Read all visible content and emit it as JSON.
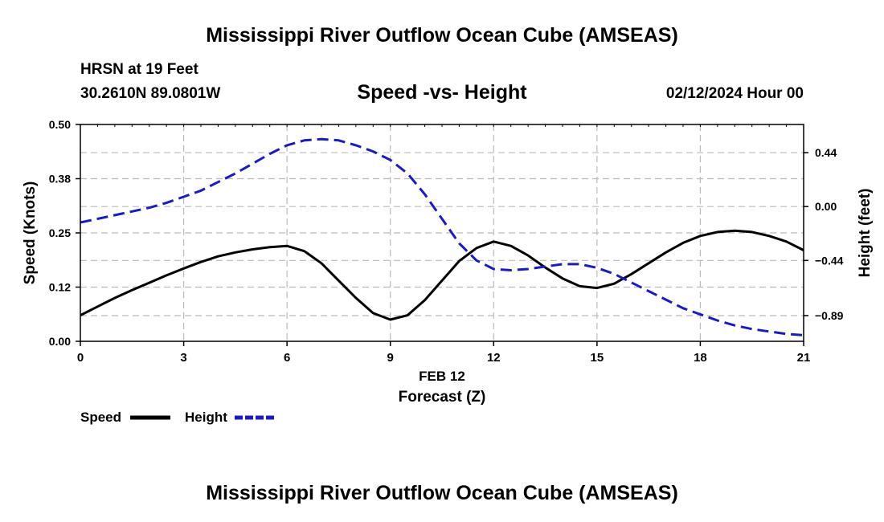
{
  "header": {
    "title": "Mississippi River Outflow Ocean Cube (AMSEAS)",
    "station": "HRSN at 19 Feet",
    "coords": "30.2610N  89.0801W",
    "datetime": "02/12/2024 Hour 00",
    "bottom_title": "Mississippi River Outflow Ocean Cube (AMSEAS)"
  },
  "chart_data": {
    "type": "line",
    "title": "Speed -vs- Height",
    "xlabel": "Forecast (Z)",
    "xsublabel": "FEB 12",
    "ylabel_left": "Speed (Knots)",
    "ylabel_right": "Height (feet)",
    "xlim": [
      0,
      21
    ],
    "ylim_left": [
      0,
      0.5
    ],
    "ylim_right": [
      -1.1,
      0.67
    ],
    "x_ticks": [
      0,
      3,
      6,
      9,
      12,
      15,
      18,
      21
    ],
    "x_tick_labels": [
      "0",
      "3",
      "6",
      "9",
      "12",
      "15",
      "18",
      "21"
    ],
    "y_left_ticks": [
      0.0,
      0.125,
      0.25,
      0.375,
      0.5
    ],
    "y_left_tick_labels": [
      "0.00",
      "0.12",
      "0.25",
      "0.38",
      "0.50"
    ],
    "y_right_ticks": [
      0.44,
      0.0,
      -0.44,
      -0.89
    ],
    "y_right_tick_labels": [
      "0.44",
      "0.00",
      "−0.44",
      "−0.89"
    ],
    "series": [
      {
        "name": "Speed",
        "axis": "left",
        "color": "#000000",
        "dash": "solid",
        "x": [
          0,
          0.5,
          1,
          1.5,
          2,
          2.5,
          3,
          3.5,
          4,
          4.5,
          5,
          5.5,
          6,
          6.5,
          7,
          7.5,
          8,
          8.5,
          9,
          9.5,
          10,
          10.5,
          11,
          11.5,
          12,
          12.5,
          13,
          13.5,
          14,
          14.5,
          15,
          15.5,
          16,
          16.5,
          17,
          17.5,
          18,
          18.5,
          19,
          19.5,
          20,
          20.5,
          21
        ],
        "values": [
          0.06,
          0.08,
          0.1,
          0.118,
          0.135,
          0.152,
          0.168,
          0.183,
          0.196,
          0.205,
          0.212,
          0.217,
          0.22,
          0.208,
          0.18,
          0.14,
          0.1,
          0.065,
          0.05,
          0.06,
          0.095,
          0.14,
          0.185,
          0.215,
          0.23,
          0.22,
          0.198,
          0.17,
          0.145,
          0.127,
          0.123,
          0.133,
          0.155,
          0.18,
          0.205,
          0.227,
          0.243,
          0.252,
          0.255,
          0.252,
          0.243,
          0.23,
          0.21
        ]
      },
      {
        "name": "Height",
        "axis": "right",
        "color": "#1a1acc",
        "dash": "dashed",
        "x": [
          0,
          0.5,
          1,
          1.5,
          2,
          2.5,
          3,
          3.5,
          4,
          4.5,
          5,
          5.5,
          6,
          6.5,
          7,
          7.5,
          8,
          8.5,
          9,
          9.5,
          10,
          10.5,
          11,
          11.5,
          12,
          12.5,
          13,
          13.5,
          14,
          14.5,
          15,
          15.5,
          16,
          16.5,
          17,
          17.5,
          18,
          18.5,
          19,
          19.5,
          20,
          20.5,
          21
        ],
        "values": [
          -0.13,
          -0.1,
          -0.07,
          -0.04,
          -0.01,
          0.03,
          0.08,
          0.13,
          0.2,
          0.27,
          0.35,
          0.43,
          0.5,
          0.54,
          0.55,
          0.54,
          0.5,
          0.45,
          0.38,
          0.27,
          0.1,
          -0.1,
          -0.3,
          -0.44,
          -0.51,
          -0.52,
          -0.51,
          -0.49,
          -0.47,
          -0.47,
          -0.5,
          -0.55,
          -0.62,
          -0.69,
          -0.76,
          -0.83,
          -0.88,
          -0.93,
          -0.97,
          -1.0,
          -1.02,
          -1.04,
          -1.05
        ]
      }
    ],
    "legend": [
      {
        "label": "Speed",
        "color": "#000000",
        "dash": "solid"
      },
      {
        "label": "Height",
        "color": "#1a1acc",
        "dash": "dashed"
      }
    ],
    "grid": true
  }
}
